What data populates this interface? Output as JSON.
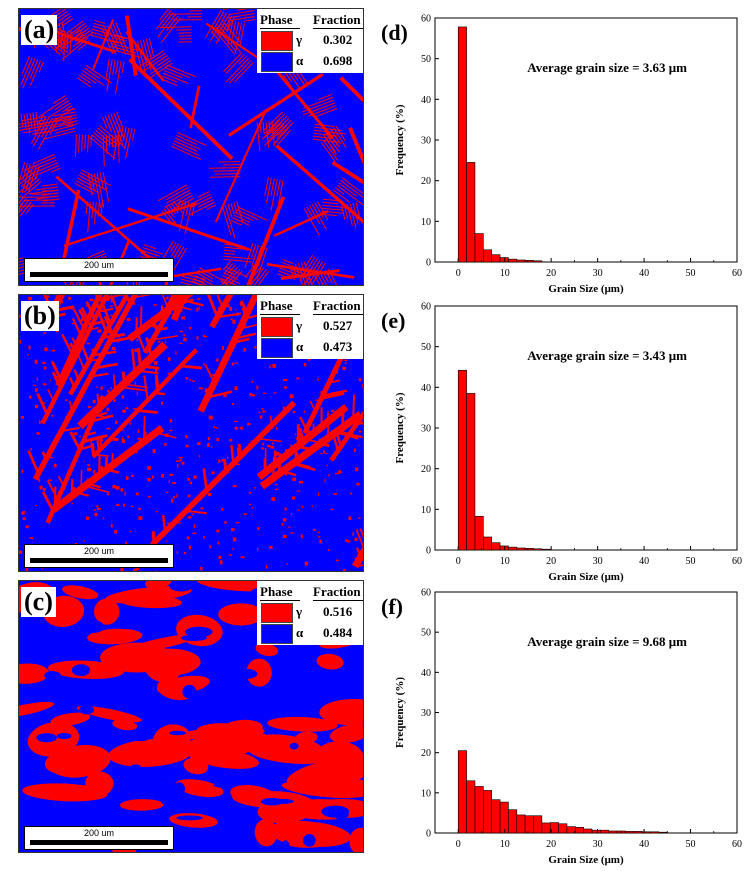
{
  "colors": {
    "gamma": "#ff0000",
    "alpha": "#0000ff"
  },
  "phase_panels": [
    {
      "label": "(a)",
      "header_phase": "Phase",
      "header_fraction": "Fraction",
      "rows": [
        {
          "symbol": "γ",
          "fraction": "0.302",
          "color": "#ff0000"
        },
        {
          "symbol": "α",
          "fraction": "0.698",
          "color": "#0000ff"
        }
      ],
      "scale_bar": "200 um",
      "gamma_fraction": 0.302
    },
    {
      "label": "(b)",
      "header_phase": "Phase",
      "header_fraction": "Fraction",
      "rows": [
        {
          "symbol": "γ",
          "fraction": "0.527",
          "color": "#ff0000"
        },
        {
          "symbol": "α",
          "fraction": "0.473",
          "color": "#0000ff"
        }
      ],
      "scale_bar": "200 um",
      "gamma_fraction": 0.527
    },
    {
      "label": "(c)",
      "header_phase": "Phase",
      "header_fraction": "Fraction",
      "rows": [
        {
          "symbol": "γ",
          "fraction": "0.516",
          "color": "#ff0000"
        },
        {
          "symbol": "α",
          "fraction": "0.484",
          "color": "#0000ff"
        }
      ],
      "scale_bar": "200 um",
      "gamma_fraction": 0.516
    }
  ],
  "chart_data": [
    {
      "type": "bar",
      "panel": "(d)",
      "annotation": "Average grain size = 3.63 μm",
      "xlabel": "Grain Size (μm)",
      "ylabel": "Frequency (%)",
      "xlim": [
        -5,
        60
      ],
      "ylim": [
        0,
        60
      ],
      "xticks": [
        0,
        10,
        20,
        30,
        40,
        50,
        60
      ],
      "yticks": [
        0,
        10,
        20,
        30,
        40,
        50,
        60
      ],
      "bin_width": 1.8,
      "x": [
        0.9,
        2.7,
        4.5,
        6.3,
        8.1,
        9.9,
        11.7,
        13.5,
        15.3,
        17.1
      ],
      "values": [
        57.8,
        24.5,
        7.0,
        3.0,
        1.8,
        1.1,
        0.7,
        0.5,
        0.4,
        0.3
      ],
      "bar_color": "#ff0000"
    },
    {
      "type": "bar",
      "panel": "(e)",
      "annotation": "Average grain size = 3.43 μm",
      "xlabel": "Grain Size (μm)",
      "ylabel": "Frequency (%)",
      "xlim": [
        -5,
        60
      ],
      "ylim": [
        0,
        60
      ],
      "xticks": [
        0,
        10,
        20,
        30,
        40,
        50,
        60
      ],
      "yticks": [
        0,
        10,
        20,
        30,
        40,
        50,
        60
      ],
      "bin_width": 1.8,
      "x": [
        0.9,
        2.7,
        4.5,
        6.3,
        8.1,
        9.9,
        11.7,
        13.5,
        15.3,
        17.1,
        18.9
      ],
      "values": [
        44.2,
        38.5,
        8.3,
        3.2,
        1.8,
        1.0,
        0.7,
        0.5,
        0.4,
        0.3,
        0.2
      ],
      "bar_color": "#ff0000"
    },
    {
      "type": "bar",
      "panel": "(f)",
      "annotation": "Average grain size = 9.68 μm",
      "xlabel": "Grain Size (μm)",
      "ylabel": "Frequency (%)",
      "xlim": [
        -5,
        60
      ],
      "ylim": [
        0,
        60
      ],
      "xticks": [
        0,
        10,
        20,
        30,
        40,
        50,
        60
      ],
      "yticks": [
        0,
        10,
        20,
        30,
        40,
        50,
        60
      ],
      "bin_width": 1.8,
      "x": [
        0.9,
        2.7,
        4.5,
        6.3,
        8.1,
        9.9,
        11.7,
        13.5,
        15.3,
        17.1,
        18.9,
        20.7,
        22.5,
        24.3,
        26.1,
        27.9,
        29.7,
        31.5,
        33.3,
        35.1,
        36.9,
        38.7,
        40.5,
        42.3,
        44.1
      ],
      "values": [
        20.5,
        13.0,
        11.6,
        10.6,
        8.3,
        7.7,
        5.8,
        4.5,
        4.3,
        4.3,
        2.5,
        2.6,
        2.3,
        1.6,
        1.4,
        1.0,
        0.7,
        0.7,
        0.5,
        0.5,
        0.4,
        0.4,
        0.3,
        0.3,
        0.2
      ],
      "bar_color": "#ff0000"
    }
  ]
}
